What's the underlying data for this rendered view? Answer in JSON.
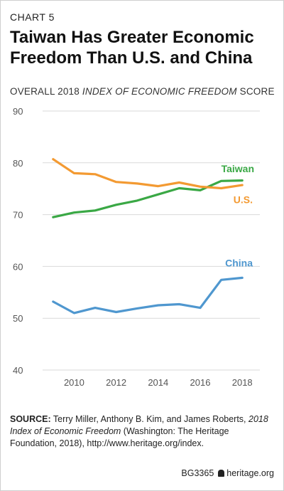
{
  "header": {
    "chart_number": "CHART 5",
    "title": "Taiwan Has Greater Economic Freedom Than U.S. and China",
    "subtitle_pre": "OVERALL 2018 ",
    "subtitle_italic": "INDEX OF ECONOMIC FREEDOM",
    "subtitle_post": " SCORE"
  },
  "chart_data": {
    "type": "line",
    "title": "Taiwan Has Greater Economic Freedom Than U.S. and China",
    "ylabel": "OVERALL 2018 INDEX OF ECONOMIC FREEDOM SCORE",
    "xlabel": "",
    "x": [
      2009,
      2010,
      2011,
      2012,
      2013,
      2014,
      2015,
      2016,
      2017,
      2018
    ],
    "xticks": [
      2010,
      2012,
      2014,
      2016,
      2018
    ],
    "yticks": [
      40,
      50,
      60,
      70,
      80,
      90
    ],
    "xlim": [
      2008.5,
      2018.5
    ],
    "ylim": [
      40,
      90
    ],
    "grid": true,
    "series": [
      {
        "name": "Taiwan",
        "color": "#3aa845",
        "values": [
          69.5,
          70.4,
          70.8,
          71.9,
          72.7,
          73.9,
          75.1,
          74.7,
          76.5,
          76.6
        ]
      },
      {
        "name": "U.S.",
        "color": "#f39a32",
        "values": [
          80.7,
          78.0,
          77.8,
          76.3,
          76.0,
          75.5,
          76.2,
          75.4,
          75.1,
          75.7
        ]
      },
      {
        "name": "China",
        "color": "#4f97cf",
        "values": [
          53.2,
          51.0,
          52.0,
          51.2,
          51.9,
          52.5,
          52.7,
          52.0,
          57.4,
          57.8
        ]
      }
    ]
  },
  "source": {
    "label": "SOURCE:",
    "line1": " Terry Miller, Anthony B. Kim, and James Roberts, ",
    "italic": "2018 Index of Economic Freedom",
    "line2": " (Washington: The Heritage Foundation, 2018), http://www.heritage.org/index."
  },
  "footer": {
    "code": "BG3365",
    "site": "heritage.org"
  }
}
